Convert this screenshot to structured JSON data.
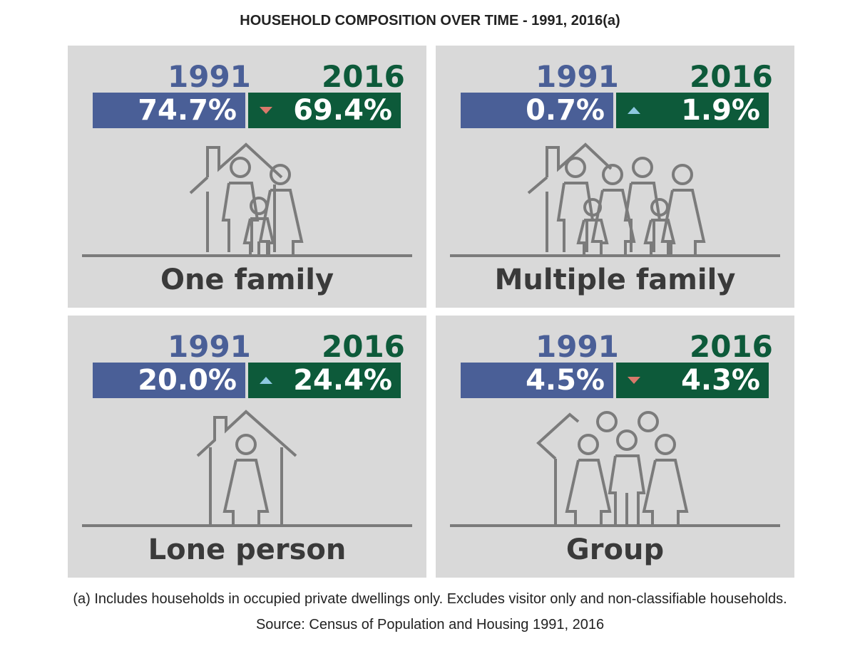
{
  "title": "HOUSEHOLD COMPOSITION OVER TIME - 1991, 2016(a)",
  "panels": [
    {
      "label": "One family",
      "year1": "1991",
      "year2": "2016",
      "value1": "74.7%",
      "value2": "69.4%",
      "trend": "down",
      "icon": "one-family-icon"
    },
    {
      "label": "Multiple family",
      "year1": "1991",
      "year2": "2016",
      "value1": "0.7%",
      "value2": "1.9%",
      "trend": "up",
      "icon": "multiple-family-icon"
    },
    {
      "label": "Lone person",
      "year1": "1991",
      "year2": "2016",
      "value1": "20.0%",
      "value2": "24.4%",
      "trend": "up",
      "icon": "lone-person-icon"
    },
    {
      "label": "Group",
      "year1": "1991",
      "year2": "2016",
      "value1": "4.5%",
      "value2": "4.3%",
      "trend": "down",
      "icon": "group-icon"
    }
  ],
  "footnote": "(a) Includes households in occupied private dwellings only. Excludes visitor only and non-classifiable households.",
  "source": "Source: Census of Population and Housing 1991, 2016",
  "colors": {
    "year1": "#4a5f97",
    "year2": "#0d5a3a",
    "panel": "#d9d9d9",
    "down_arrow": "#d9796b",
    "up_arrow": "#8dc8e0"
  }
}
